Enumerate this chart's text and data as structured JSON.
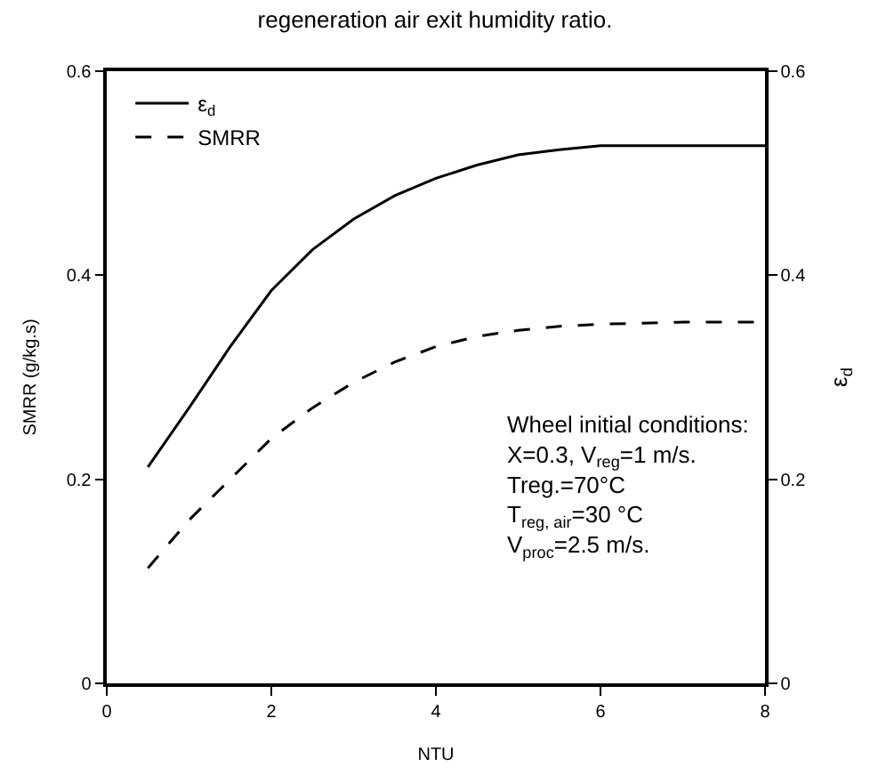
{
  "chart_data": {
    "type": "line",
    "title": "regeneration air exit humidity ratio.",
    "xlabel": "NTU",
    "ylabel": "SMRR (g/kg.s)",
    "y2label": "ε$_{d}$",
    "xlim": [
      0,
      8
    ],
    "xticks": [
      0,
      2,
      4,
      6,
      8
    ],
    "ylim": [
      0,
      0.6
    ],
    "yticks": [
      0,
      0.2,
      0.4,
      0.6
    ],
    "y2lim": [
      0,
      0.6
    ],
    "y2ticks": [
      0,
      0.2,
      0.4,
      0.6
    ],
    "x": [
      0.5,
      1,
      1.5,
      2,
      2.5,
      3,
      3.5,
      4,
      4.5,
      5,
      5.5,
      6,
      7,
      8
    ],
    "series": [
      {
        "name": "ε$_{d}$",
        "color": "#000000",
        "line_style": "solid",
        "axis": "y2",
        "values": [
          0.212,
          0.27,
          0.33,
          0.385,
          0.425,
          0.455,
          0.478,
          0.495,
          0.508,
          0.518,
          0.523,
          0.527,
          0.527,
          0.527
        ]
      },
      {
        "name": "SMRR",
        "color": "#000000",
        "line_style": "dashed",
        "values": [
          0.113,
          0.16,
          0.2,
          0.24,
          0.27,
          0.295,
          0.315,
          0.33,
          0.34,
          0.346,
          0.35,
          0.352,
          0.354,
          0.354
        ]
      }
    ],
    "annotations": [
      "Wheel initial conditions:\nX=0.3, V$_{reg}$=1 m/s.\nTreg.=70°C\nT$_{reg, air}$=30 °C\nV$_{proc}$=2.5 m/s."
    ],
    "legend": "top left",
    "marker": "none"
  }
}
